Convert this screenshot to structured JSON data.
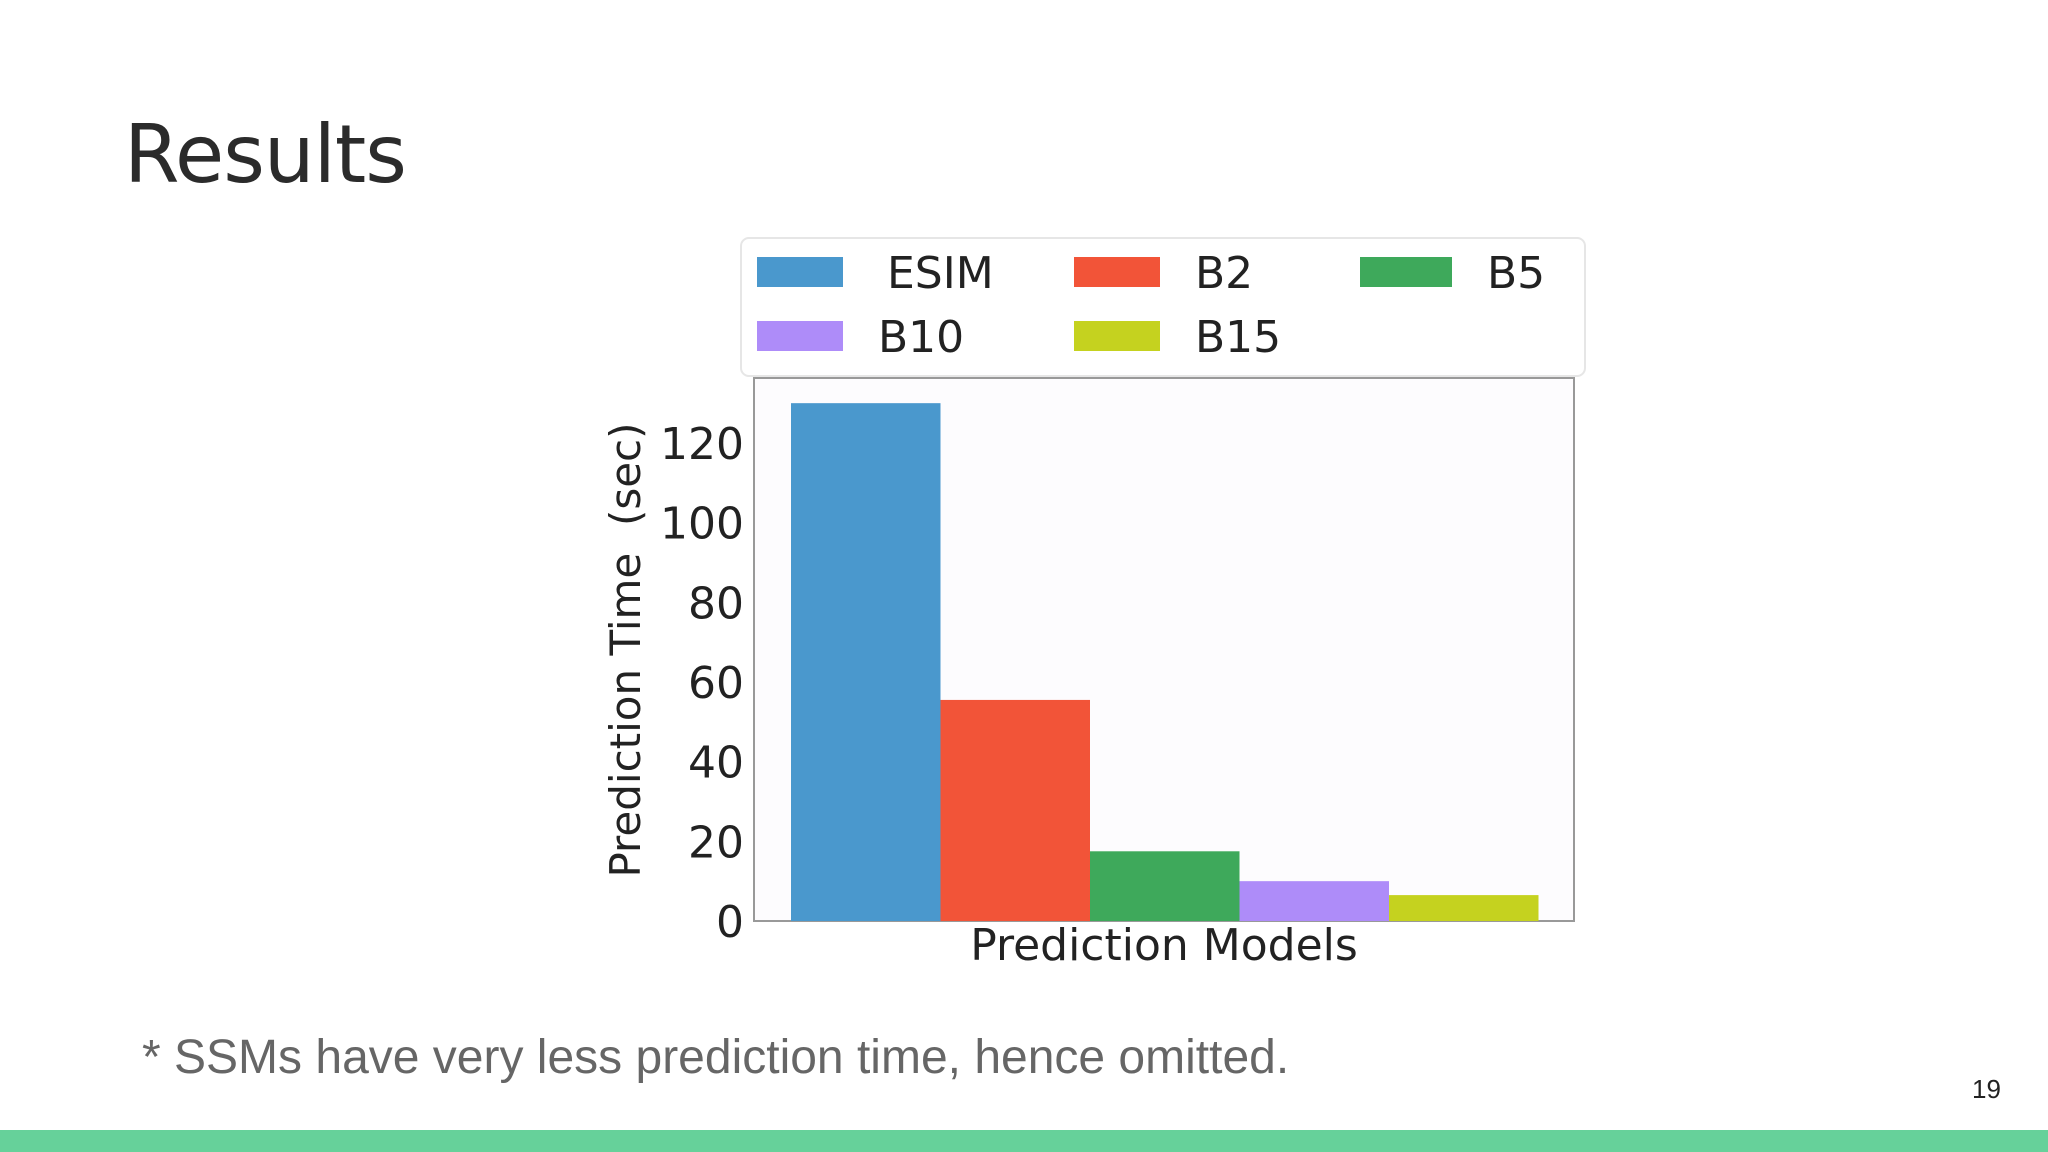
{
  "slide": {
    "title": "Results",
    "footnote": "* SSMs have very less prediction time, hence omitted.",
    "page_number": "19",
    "accent_color": "#66d19a"
  },
  "chart_data": {
    "type": "bar",
    "title": "",
    "xlabel": "Prediction Models",
    "ylabel": "Prediction Time  (sec)",
    "ylim": [
      0,
      137
    ],
    "yticks": [
      0,
      20,
      40,
      60,
      80,
      100,
      120
    ],
    "grid": false,
    "legend_position": "top",
    "series": [
      {
        "name": "ESIM",
        "value": 130,
        "color": "#4a98cd"
      },
      {
        "name": "B2",
        "value": 55.5,
        "color": "#f25438"
      },
      {
        "name": "B5",
        "value": 17.5,
        "color": "#3ea95b"
      },
      {
        "name": "B10",
        "value": 10,
        "color": "#ae8cf9"
      },
      {
        "name": "B15",
        "value": 6.5,
        "color": "#c5d21f"
      }
    ]
  }
}
